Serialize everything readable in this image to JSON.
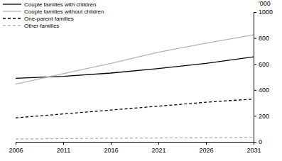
{
  "chart_data": {
    "type": "line",
    "ylabel": "'000",
    "x": [
      2006,
      2011,
      2016,
      2021,
      2026,
      2031
    ],
    "series": [
      {
        "name": "Couple families with children",
        "color": "#000000",
        "line_style": "solid",
        "values": [
          490,
          505,
          530,
          565,
          605,
          655
        ]
      },
      {
        "name": "Couple families without children",
        "color": "#b3b3b3",
        "line_style": "solid",
        "values": [
          445,
          525,
          605,
          690,
          760,
          825
        ]
      },
      {
        "name": "One-parent families",
        "color": "#000000",
        "line_style": "dashed",
        "values": [
          185,
          215,
          245,
          275,
          305,
          330
        ]
      },
      {
        "name": "Other families",
        "color": "#b3b3b3",
        "line_style": "dashed",
        "values": [
          22,
          25,
          28,
          30,
          32,
          35
        ]
      }
    ],
    "xlim": [
      2006,
      2031
    ],
    "xticks": [
      2006,
      2011,
      2016,
      2021,
      2026,
      2031
    ],
    "ylim": [
      0,
      1000
    ],
    "yticks": [
      0,
      200,
      400,
      600,
      800,
      1000
    ],
    "grid": false,
    "legend": "upper left"
  }
}
